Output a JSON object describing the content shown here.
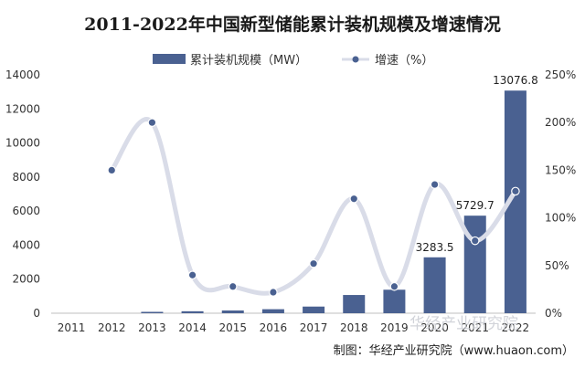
{
  "chart_data": {
    "type": "bar+line",
    "title": "2011-2022年中国新型储能累计装机规模及增速情况",
    "categories": [
      "2011",
      "2012",
      "2013",
      "2014",
      "2015",
      "2016",
      "2017",
      "2018",
      "2019",
      "2020",
      "2021",
      "2022"
    ],
    "series": [
      {
        "name": "累计装机规模（MW）",
        "type": "bar",
        "axis": "left",
        "values": [
          0,
          0,
          80,
          115,
          160,
          235,
          390,
          1070,
          1380,
          3283.5,
          5729.7,
          13076.8
        ]
      },
      {
        "name": "增速（%）",
        "type": "line",
        "axis": "right",
        "values": [
          null,
          150,
          200,
          40,
          28,
          22,
          52,
          120,
          28,
          135,
          76,
          128
        ]
      }
    ],
    "data_labels": [
      {
        "category": "2020",
        "text": "3283.5"
      },
      {
        "category": "2021",
        "text": "5729.7"
      },
      {
        "category": "2022",
        "text": "13076.8"
      }
    ],
    "y_left": {
      "min": 0,
      "max": 14000,
      "ticks": [
        "0",
        "2000",
        "4000",
        "6000",
        "8000",
        "10000",
        "12000",
        "14000"
      ]
    },
    "y_right": {
      "min": 0,
      "max": 250,
      "ticks": [
        "0%",
        "50%",
        "100%",
        "150%",
        "200%",
        "250%"
      ]
    },
    "legend_position": "top",
    "grid": false,
    "colors": {
      "bar": "#4a6191",
      "line": "#d9dce8",
      "marker": "#4a6191"
    }
  },
  "source": "制图：华经产业研究院（www.huaon.com）",
  "watermark": "华经产业研究院"
}
